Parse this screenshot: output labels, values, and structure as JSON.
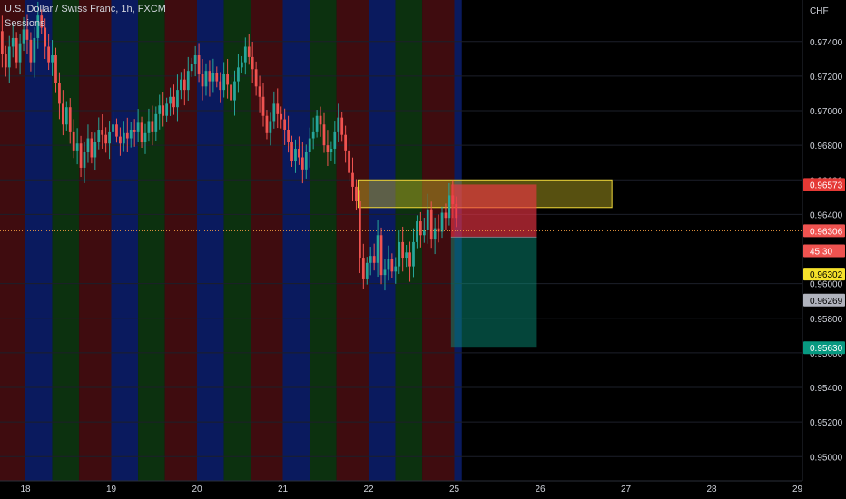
{
  "header": {
    "title": "U.S. Dollar / Swiss Franc, 1h, FXCM",
    "indicator": "Sessions"
  },
  "chart_data": {
    "type": "candlestick",
    "symbol": "USDCHF",
    "interval": "1h",
    "currency_label": "CHF",
    "yrange": [
      0.9486,
      0.9764
    ],
    "y_ticks": [
      "0.95000",
      "0.95200",
      "0.95400",
      "0.95600",
      "0.95800",
      "0.96000",
      "0.96200",
      "0.96400",
      "0.96600",
      "0.96800",
      "0.97000",
      "0.97200",
      "0.97400"
    ],
    "x_ticks": [
      {
        "label": "18",
        "x": 0.0
      },
      {
        "label": "19",
        "x": 1.0
      },
      {
        "label": "20",
        "x": 2.0
      },
      {
        "label": "21",
        "x": 3.0
      },
      {
        "label": "22",
        "x": 4.0
      },
      {
        "label": "25",
        "x": 5.0
      },
      {
        "label": "26",
        "x": 6.0
      },
      {
        "label": "27",
        "x": 7.0
      },
      {
        "label": "28",
        "x": 8.0
      },
      {
        "label": "29",
        "x": 9.0
      }
    ],
    "sessions": [
      {
        "name": "asia",
        "color": "#0c1f6e"
      },
      {
        "name": "london",
        "color": "#0e3a12"
      },
      {
        "name": "newyork",
        "color": "#4a0e12"
      }
    ],
    "closes": [
      0.9742,
      0.9748,
      0.9736,
      0.9751,
      0.9744,
      0.9739,
      0.9755,
      0.9747,
      0.9734,
      0.9744,
      0.9749,
      0.9741,
      0.9731,
      0.9738,
      0.9744,
      0.9752,
      0.9746,
      0.9733,
      0.9725,
      0.9737,
      0.9742,
      0.9728,
      0.9739,
      0.9747,
      0.9741,
      0.9728,
      0.9742,
      0.9755,
      0.9748,
      0.9737,
      0.9728,
      0.9732,
      0.9716,
      0.9704,
      0.9692,
      0.9702,
      0.9688,
      0.9677,
      0.9681,
      0.9667,
      0.9676,
      0.9684,
      0.9673,
      0.9682,
      0.9689,
      0.9686,
      0.9681,
      0.9688,
      0.9692,
      0.9685,
      0.9681,
      0.9687,
      0.9684,
      0.9689,
      0.9688,
      0.9693,
      0.9682,
      0.9687,
      0.9694,
      0.9688,
      0.9698,
      0.9703,
      0.9697,
      0.9704,
      0.9708,
      0.9702,
      0.9712,
      0.9718,
      0.9712,
      0.9723,
      0.9727,
      0.9732,
      0.9721,
      0.9714,
      0.9723,
      0.9717,
      0.9722,
      0.9717,
      0.9712,
      0.9721,
      0.9715,
      0.9706,
      0.9717,
      0.9725,
      0.9728,
      0.9737,
      0.9731,
      0.9724,
      0.9714,
      0.9708,
      0.9697,
      0.9687,
      0.9694,
      0.9704,
      0.9698,
      0.9695,
      0.9689,
      0.9682,
      0.9671,
      0.9678,
      0.9673,
      0.9666,
      0.9676,
      0.9684,
      0.9688,
      0.9697,
      0.9692,
      0.968,
      0.9676,
      0.9678,
      0.9688,
      0.9696,
      0.9686,
      0.9677,
      0.9664,
      0.9656,
      0.9648,
      0.9615,
      0.9603,
      0.9612,
      0.9616,
      0.9612,
      0.9628,
      0.9605,
      0.9608,
      0.9614,
      0.9607,
      0.961,
      0.9624,
      0.9615,
      0.9618,
      0.961,
      0.9624,
      0.9636,
      0.9628,
      0.9631,
      0.9643,
      0.9626,
      0.9632,
      0.963,
      0.9641,
      0.9638,
      0.9651,
      0.9646,
      0.9638
    ],
    "position": {
      "side": "short",
      "entry_price": 0.96269,
      "stop_price": 0.96573,
      "target_price": 0.9563,
      "start_bar": 143,
      "end_bar": 167
    },
    "zone": {
      "top": 0.966,
      "bottom": 0.9644,
      "start_bar": 117,
      "end_bar": 188
    },
    "current_price_line": 0.96306,
    "price_labels": [
      {
        "text": "0.96573",
        "price": 0.96573,
        "bg": "#e53935",
        "fg": "#ffffff"
      },
      {
        "text": "0.96306",
        "price": 0.96306,
        "bg": "#ef5350",
        "fg": "#ffffff"
      },
      {
        "text": "45:30",
        "price": 0.9619,
        "bg": "#ef5350",
        "fg": "#ffffff"
      },
      {
        "text": "0.96302",
        "price": 0.96055,
        "bg": "#f5e12b",
        "fg": "#000000"
      },
      {
        "text": "0.96269",
        "price": 0.95905,
        "bg": "#b0b3bd",
        "fg": "#000000"
      },
      {
        "text": "0.95630",
        "price": 0.9563,
        "bg": "#089981",
        "fg": "#ffffff"
      }
    ],
    "colors": {
      "up": "#26a69a",
      "down": "#ef5350",
      "axis_text": "#d1d4dc",
      "price_line": "#f59d42",
      "zone_fill": "rgba(218,200,40,0.40)",
      "zone_border": "#f0d83a",
      "stop_fill": "rgba(242,54,69,0.62)",
      "target_fill": "rgba(8,153,129,0.45)"
    }
  }
}
